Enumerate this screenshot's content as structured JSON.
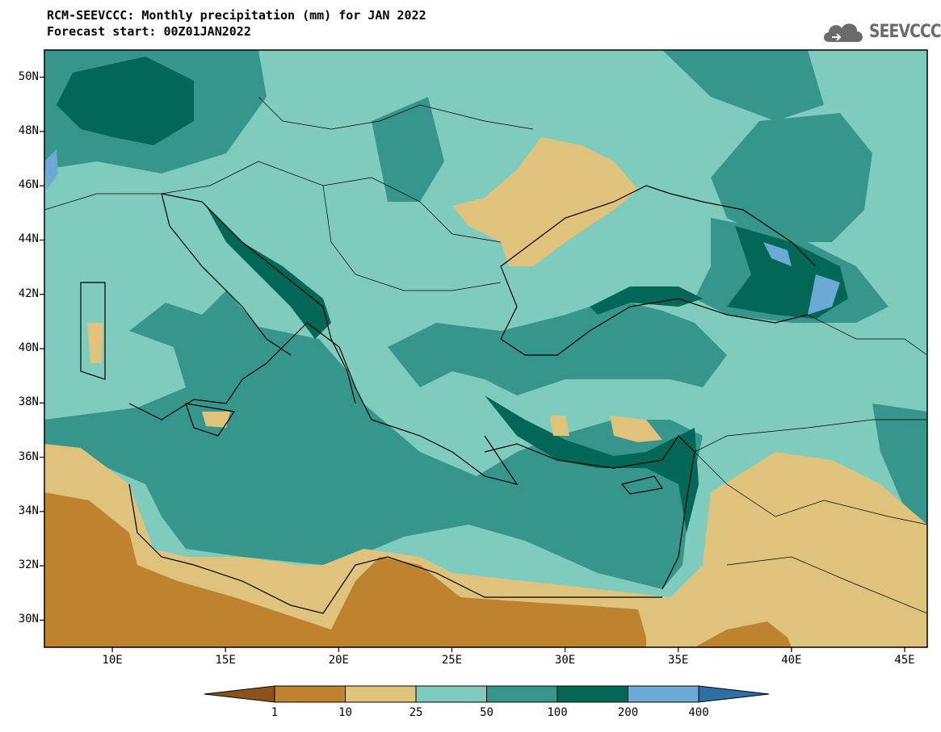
{
  "title_line1": "RCM-SEEVCCC: Monthly precipitation (mm) for JAN 2022",
  "title_line2": "Forecast start: 00Z01JAN2022",
  "logo_text": "SEEVCCC",
  "logo_icon": "cloud-icon",
  "lat_labels": [
    "50N",
    "48N",
    "46N",
    "44N",
    "42N",
    "40N",
    "38N",
    "36N",
    "34N",
    "32N",
    "30N"
  ],
  "lon_labels": [
    "10E",
    "15E",
    "20E",
    "25E",
    "30E",
    "35E",
    "40E",
    "45E"
  ],
  "colorbar": {
    "labels": [
      "1",
      "10",
      "25",
      "50",
      "100",
      "200",
      "400"
    ],
    "colors": [
      "#8a5418",
      "#bf8330",
      "#dfc27c",
      "#7fccbe",
      "#36968c",
      "#026756",
      "#6aaad5",
      "#2e6fa8"
    ]
  },
  "map_extent": {
    "lon_min": 7,
    "lon_max": 46,
    "lat_min": 29,
    "lat_max": 51
  }
}
